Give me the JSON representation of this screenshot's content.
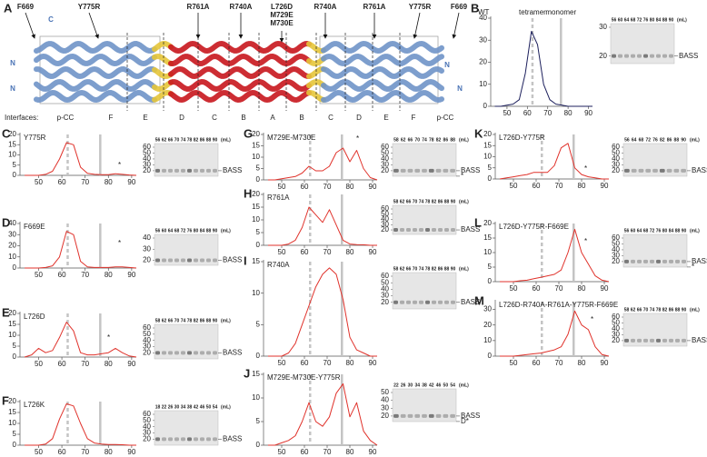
{
  "panel_a": {
    "letter": "A",
    "mutations": [
      "F669",
      "Y775R",
      "R761A",
      "R740A",
      "R740A",
      "R761A",
      "Y775R",
      "F669"
    ],
    "center_mutation": [
      "L726D",
      "M729E",
      "M730E"
    ],
    "termini": [
      "C",
      "N",
      "N",
      "N",
      "N"
    ],
    "interfaces_label": "Interfaces:",
    "interfaces": [
      "p-CC",
      "F",
      "E",
      "D",
      "C",
      "B",
      "A",
      "B",
      "C",
      "D",
      "E",
      "F",
      "p-CC"
    ]
  },
  "chart_data": [
    {
      "type": "line",
      "panel": "B",
      "title": "WT",
      "color": "#1c1f5c",
      "x": [
        44,
        47,
        50,
        53,
        56,
        59,
        62,
        65,
        68,
        71,
        74,
        77,
        80,
        83,
        86,
        89,
        92
      ],
      "values": [
        0,
        0,
        0.5,
        1,
        3,
        15,
        34,
        28,
        10,
        3,
        1,
        0.5,
        0,
        0,
        0,
        0,
        0
      ],
      "xlim": [
        42,
        92
      ],
      "xticks": [
        50,
        60,
        70,
        80,
        90
      ],
      "ylim": [
        0,
        40
      ],
      "yticks": [
        0,
        10,
        20,
        30,
        40
      ],
      "vlines": [
        62.5,
        76.5
      ],
      "vline_labels": [
        "tetramer",
        "monomer"
      ],
      "gel": {
        "lanes": [
          56,
          60,
          64,
          68,
          72,
          76,
          80,
          84,
          88,
          90
        ],
        "unit": "(mL)",
        "markers": [
          30,
          20
        ],
        "bands": [
          "BASS"
        ]
      }
    },
    {
      "type": "line",
      "panel": "C",
      "title": "Y775R",
      "color": "#e0322b",
      "x": [
        44,
        47,
        50,
        53,
        56,
        59,
        62,
        65,
        68,
        71,
        74,
        77,
        80,
        83,
        86,
        89,
        92
      ],
      "values": [
        0,
        0,
        0,
        0.5,
        2,
        8,
        16,
        15,
        4,
        1,
        0.5,
        0.3,
        0.3,
        0.8,
        0.5,
        0.2,
        0
      ],
      "xlim": [
        42,
        92
      ],
      "xticks": [
        50,
        60,
        70,
        80,
        90
      ],
      "ylim": [
        0,
        20
      ],
      "yticks": [
        0,
        5,
        10,
        15,
        20
      ],
      "vlines": [
        62.5,
        76.5
      ],
      "annotation": "*",
      "gel": {
        "lanes": [
          56,
          62,
          66,
          70,
          74,
          78,
          82,
          86,
          88,
          90
        ],
        "unit": "(mL)",
        "markers": [
          60,
          50,
          40,
          30,
          20
        ],
        "bands": [
          "BASS"
        ]
      }
    },
    {
      "type": "line",
      "panel": "D",
      "title": "F669E",
      "color": "#e0322b",
      "x": [
        44,
        47,
        50,
        53,
        56,
        59,
        62,
        65,
        68,
        71,
        74,
        77,
        80,
        83,
        86,
        89,
        92
      ],
      "values": [
        0,
        0,
        0,
        0.5,
        2,
        10,
        33,
        30,
        6,
        1,
        0.5,
        0.5,
        0.5,
        1,
        1,
        0.5,
        0
      ],
      "xlim": [
        42,
        92
      ],
      "xticks": [
        50,
        60,
        70,
        80,
        90
      ],
      "ylim": [
        0,
        40
      ],
      "yticks": [
        0,
        10,
        20,
        30,
        40
      ],
      "vlines": [
        62.5,
        76.5
      ],
      "annotation": "*",
      "gel": {
        "lanes": [
          56,
          60,
          64,
          68,
          72,
          76,
          80,
          84,
          88,
          90
        ],
        "unit": "(mL)",
        "markers": [
          40,
          30,
          20
        ],
        "bands": [
          "BASS"
        ]
      }
    },
    {
      "type": "line",
      "panel": "E",
      "title": "L726D",
      "color": "#e0322b",
      "x": [
        44,
        47,
        50,
        53,
        56,
        59,
        62,
        65,
        68,
        71,
        74,
        77,
        80,
        83,
        86,
        89,
        92
      ],
      "values": [
        0,
        1,
        4,
        2,
        3,
        9,
        16,
        12,
        2,
        1,
        1,
        1.5,
        2,
        4,
        2,
        0.5,
        0
      ],
      "xlim": [
        42,
        92
      ],
      "xticks": [
        50,
        60,
        70,
        80,
        90
      ],
      "ylim": [
        0,
        20
      ],
      "yticks": [
        0,
        5,
        10,
        15,
        20
      ],
      "vlines": [
        62.5,
        76.5
      ],
      "annotation": "*",
      "gel": {
        "lanes": [
          58,
          62,
          66,
          70,
          74,
          78,
          82,
          86,
          88,
          90
        ],
        "unit": "(mL)",
        "markers": [
          60,
          50,
          40,
          30,
          20
        ],
        "bands": [
          "BASS"
        ]
      }
    },
    {
      "type": "line",
      "panel": "F",
      "title": "L726K",
      "color": "#e0322b",
      "x": [
        44,
        47,
        50,
        53,
        56,
        59,
        62,
        65,
        68,
        71,
        74,
        77,
        80,
        83,
        86,
        89,
        92
      ],
      "values": [
        0,
        0,
        0,
        0.5,
        3,
        12,
        19,
        18,
        10,
        3,
        1,
        0.5,
        0.3,
        0.3,
        0.2,
        0,
        0
      ],
      "xlim": [
        42,
        92
      ],
      "xticks": [
        50,
        60,
        70,
        80,
        90
      ],
      "ylim": [
        0,
        20
      ],
      "yticks": [
        0,
        5,
        10,
        15,
        20
      ],
      "vlines": [
        62.5,
        76.5
      ],
      "gel": {
        "lanes": [
          18,
          22,
          26,
          30,
          34,
          38,
          42,
          46,
          50,
          54
        ],
        "unit": "(mL)",
        "markers": [
          60,
          50,
          40,
          30,
          20
        ],
        "bands": [
          "BASS"
        ]
      }
    },
    {
      "type": "line",
      "panel": "G",
      "title": "M729E-M730E",
      "color": "#e0322b",
      "x": [
        44,
        47,
        50,
        53,
        56,
        59,
        62,
        65,
        68,
        71,
        74,
        77,
        80,
        83,
        86,
        89,
        92
      ],
      "values": [
        0,
        0,
        0.5,
        1,
        1.5,
        3,
        6,
        4,
        4,
        6,
        12,
        14,
        8,
        13,
        5,
        1,
        0
      ],
      "xlim": [
        42,
        92
      ],
      "xticks": [
        50,
        60,
        70,
        80,
        90
      ],
      "ylim": [
        0,
        20
      ],
      "yticks": [
        0,
        5,
        10,
        15,
        20
      ],
      "vlines": [
        62.5,
        76.5
      ],
      "annotation": "*",
      "gel": {
        "lanes": [
          58,
          62,
          66,
          70,
          74,
          78,
          82,
          86,
          88
        ],
        "unit": "(mL)",
        "markers": [
          60,
          50,
          40,
          30,
          20
        ],
        "bands": [
          "BASS",
          "*"
        ]
      }
    },
    {
      "type": "line",
      "panel": "H",
      "title": "R761A",
      "color": "#e0322b",
      "x": [
        44,
        47,
        50,
        53,
        56,
        59,
        62,
        65,
        68,
        71,
        74,
        77,
        80,
        83,
        86,
        89,
        92
      ],
      "values": [
        0,
        0,
        0,
        0.5,
        2,
        7,
        15,
        12,
        9,
        14,
        8,
        2,
        0.5,
        0.3,
        0.2,
        0,
        0
      ],
      "xlim": [
        42,
        92
      ],
      "xticks": [
        50,
        60,
        70,
        80,
        90
      ],
      "ylim": [
        0,
        20
      ],
      "yticks": [
        0,
        5,
        10,
        15,
        20
      ],
      "vlines": [
        62.5,
        76.5
      ],
      "gel": {
        "lanes": [
          58,
          62,
          66,
          70,
          74,
          78,
          82,
          86,
          88,
          90
        ],
        "unit": "(mL)",
        "markers": [
          60,
          50,
          40,
          30,
          20
        ],
        "bands": [
          "BASS"
        ]
      }
    },
    {
      "type": "line",
      "panel": "I",
      "title": "R740A",
      "color": "#e0322b",
      "x": [
        44,
        47,
        50,
        53,
        56,
        59,
        62,
        65,
        68,
        71,
        74,
        77,
        80,
        83,
        86,
        89,
        92
      ],
      "values": [
        0,
        0,
        0,
        0.5,
        2,
        5,
        8,
        11,
        13,
        14,
        13,
        9,
        3,
        1,
        0.5,
        0,
        0
      ],
      "xlim": [
        42,
        92
      ],
      "xticks": [
        50,
        60,
        70,
        80,
        90
      ],
      "ylim": [
        0,
        15
      ],
      "yticks": [
        0,
        5,
        10,
        15
      ],
      "vlines": [
        62.5,
        76.5
      ],
      "gel": {
        "lanes": [
          58,
          62,
          66,
          70,
          74,
          78,
          82,
          86,
          88,
          90
        ],
        "unit": "(mL)",
        "markers": [
          60,
          50,
          40,
          30,
          20
        ],
        "bands": [
          "BASS"
        ]
      }
    },
    {
      "type": "line",
      "panel": "J",
      "title": "M729E-M730E-Y775R",
      "color": "#e0322b",
      "x": [
        44,
        47,
        50,
        53,
        56,
        59,
        62,
        65,
        68,
        71,
        74,
        77,
        80,
        83,
        86,
        89,
        92
      ],
      "values": [
        0,
        0,
        0.5,
        1,
        2,
        5,
        9,
        5,
        4,
        6,
        11,
        13,
        6,
        9,
        3,
        1,
        0
      ],
      "xlim": [
        42,
        92
      ],
      "xticks": [
        50,
        60,
        70,
        80,
        90
      ],
      "ylim": [
        0,
        15
      ],
      "yticks": [
        0,
        5,
        10,
        15
      ],
      "vlines": [
        62.5,
        76.5
      ],
      "gel": {
        "lanes": [
          22,
          26,
          30,
          34,
          38,
          42,
          46,
          50,
          54
        ],
        "unit": "(mL)",
        "markers": [
          50,
          40,
          30,
          20
        ],
        "bands": [
          "BASS",
          "D*"
        ]
      }
    },
    {
      "type": "line",
      "panel": "K",
      "title": "L726D-Y775R",
      "color": "#e0322b",
      "x": [
        44,
        47,
        50,
        53,
        56,
        59,
        62,
        65,
        68,
        71,
        74,
        77,
        80,
        83,
        86,
        89,
        92
      ],
      "values": [
        0,
        0.5,
        1,
        1.5,
        2,
        3,
        3,
        3,
        6,
        14,
        16,
        5,
        2,
        1,
        0.5,
        0,
        0
      ],
      "xlim": [
        42,
        92
      ],
      "xticks": [
        50,
        60,
        70,
        80,
        90
      ],
      "ylim": [
        0,
        20
      ],
      "yticks": [
        0,
        5,
        10,
        15,
        20
      ],
      "vlines": [
        62.5,
        76.5
      ],
      "annotation": "*",
      "gel": {
        "lanes": [
          56,
          64,
          68,
          72,
          76,
          82,
          86,
          88,
          90
        ],
        "unit": "(mL)",
        "markers": [
          60,
          50,
          40,
          30,
          20
        ],
        "bands": [
          "BASS"
        ]
      }
    },
    {
      "type": "line",
      "panel": "L",
      "title": "L726D-Y775R-F669E",
      "color": "#e0322b",
      "x": [
        44,
        47,
        50,
        53,
        56,
        59,
        62,
        65,
        68,
        71,
        74,
        77,
        80,
        83,
        86,
        89,
        92
      ],
      "values": [
        0,
        0,
        0,
        0.3,
        0.5,
        1,
        1.5,
        2,
        2.5,
        4,
        10,
        18,
        10,
        6,
        2,
        0.5,
        0
      ],
      "xlim": [
        42,
        92
      ],
      "xticks": [
        50,
        60,
        70,
        80,
        90
      ],
      "ylim": [
        0,
        20
      ],
      "yticks": [
        0,
        5,
        10,
        15,
        20
      ],
      "vlines": [
        62.5,
        76.5
      ],
      "annotation": "*",
      "gel": {
        "lanes": [
          56,
          60,
          64,
          68,
          72,
          76,
          80,
          84,
          88,
          90
        ],
        "unit": "(mL)",
        "markers": [
          60,
          50,
          40,
          30,
          20
        ],
        "bands": [
          "BASS",
          "*"
        ]
      }
    },
    {
      "type": "line",
      "panel": "M",
      "title": "L726D-R740A-R761A-Y775R-F669E",
      "color": "#e0322b",
      "x": [
        44,
        47,
        50,
        53,
        56,
        59,
        62,
        65,
        68,
        71,
        74,
        77,
        80,
        83,
        86,
        89,
        92
      ],
      "values": [
        0,
        0,
        0,
        0.5,
        1,
        1.5,
        2,
        3,
        4,
        6,
        14,
        29,
        20,
        17,
        6,
        1,
        0
      ],
      "xlim": [
        42,
        92
      ],
      "xticks": [
        50,
        60,
        70,
        80,
        90
      ],
      "ylim": [
        0,
        35
      ],
      "yticks": [
        0,
        10,
        20,
        30
      ],
      "vlines": [
        62.5,
        76.5
      ],
      "annotation": "*",
      "gel": {
        "lanes": [
          58,
          62,
          66,
          70,
          74,
          78,
          82,
          86,
          88,
          90
        ],
        "unit": "(mL)",
        "markers": [
          60,
          50,
          40,
          30,
          20
        ],
        "bands": [
          "BASS"
        ]
      }
    }
  ]
}
